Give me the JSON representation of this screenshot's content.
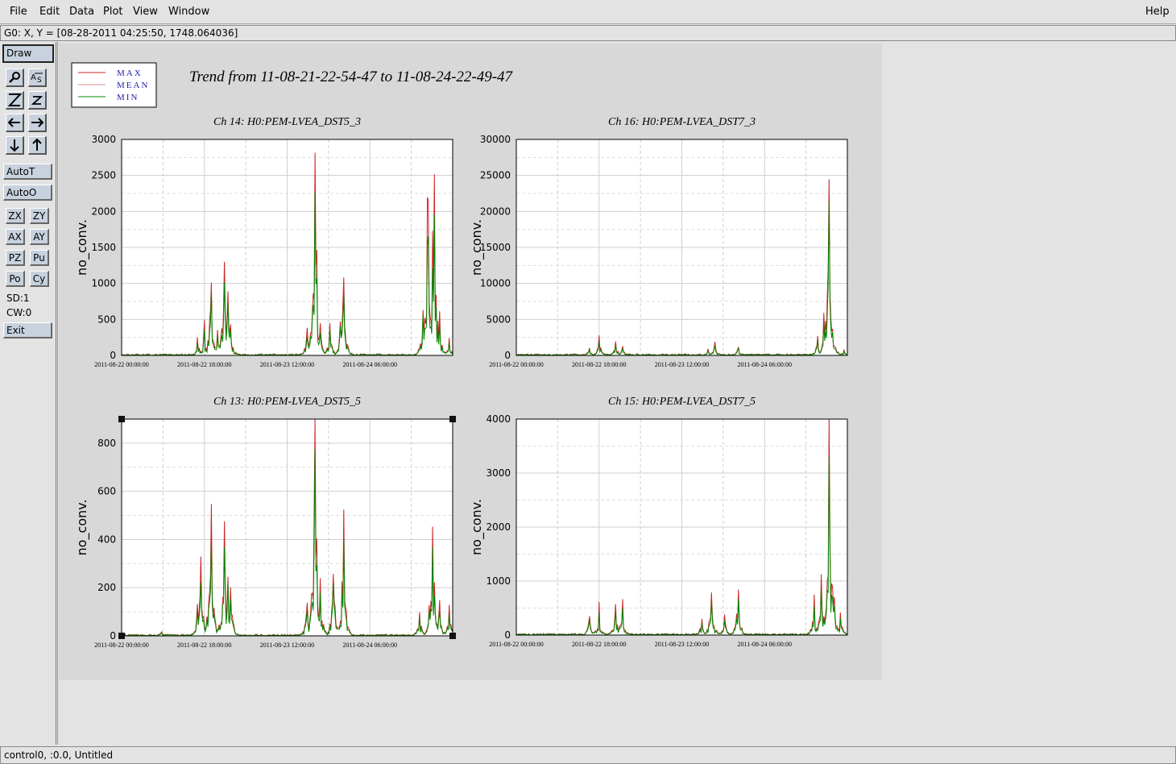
{
  "menubar": {
    "items": [
      "File",
      "Edit",
      "Data",
      "Plot",
      "View",
      "Window"
    ],
    "help": "Help"
  },
  "coord_readout": "G0: X, Y = [08-28-2011 04:25:50, 1748.064036]",
  "toolbar": {
    "draw": "Draw",
    "autot": "AutoT",
    "autoo": "AutoO",
    "small_buttons": [
      "ZX",
      "ZY",
      "AX",
      "AY",
      "PZ",
      "Pu",
      "Po",
      "Cy"
    ],
    "sd": "SD:1",
    "cw": "CW:0",
    "exit": "Exit",
    "icons": [
      "zoom-tool-icon",
      "axes-tool-icon",
      "zoom-in-icon",
      "zoom-out-icon",
      "pan-left-icon",
      "pan-right-icon",
      "pan-down-icon",
      "pan-up-icon"
    ]
  },
  "status": "control0, :0.0, Untitled",
  "plot": {
    "title": "Trend from 11-08-21-22-54-47 to 11-08-24-22-49-47",
    "legend": [
      {
        "label": "MAX",
        "color": "#cc2222"
      },
      {
        "label": "MEAN",
        "color": "#d89090"
      },
      {
        "label": "MIN",
        "color": "#008800"
      }
    ],
    "label_color": "#2222aa"
  },
  "chart_data": [
    {
      "type": "line",
      "title": "Ch 14: H0:PEM-LVEA_DST5_3",
      "ylabel": "no_conv.",
      "xlabel": "",
      "x_ticks": [
        "2011-08-22 00:00:00",
        "2011-08-22 18:00:00",
        "2011-08-23 12:00:00",
        "2011-08-24 06:00:00"
      ],
      "ylim": [
        0,
        3000
      ],
      "y_ticks": [
        0,
        500,
        1000,
        1500,
        2000,
        2500,
        3000
      ],
      "grid": true,
      "series_names": [
        "MAX",
        "MEAN",
        "MIN"
      ],
      "peaks": [
        {
          "t": 0.23,
          "v": 200
        },
        {
          "t": 0.25,
          "v": 380
        },
        {
          "t": 0.27,
          "v": 950
        },
        {
          "t": 0.29,
          "v": 300
        },
        {
          "t": 0.31,
          "v": 1100
        },
        {
          "t": 0.32,
          "v": 800
        },
        {
          "t": 0.33,
          "v": 400
        },
        {
          "t": 0.56,
          "v": 300
        },
        {
          "t": 0.585,
          "v": 2620
        },
        {
          "t": 0.6,
          "v": 350
        },
        {
          "t": 0.63,
          "v": 420
        },
        {
          "t": 0.66,
          "v": 430
        },
        {
          "t": 0.67,
          "v": 980
        },
        {
          "t": 0.91,
          "v": 600
        },
        {
          "t": 0.925,
          "v": 1800
        },
        {
          "t": 0.94,
          "v": 1400
        },
        {
          "t": 0.945,
          "v": 2110
        },
        {
          "t": 0.96,
          "v": 500
        },
        {
          "t": 0.99,
          "v": 200
        }
      ]
    },
    {
      "type": "line",
      "title": "Ch 16: H0:PEM-LVEA_DST7_3",
      "ylabel": "no_conv.",
      "xlabel": "",
      "x_ticks": [
        "2011-08-22 00:00:00",
        "2011-08-22 18:00:00",
        "2011-08-23 12:00:00",
        "2011-08-24 06:00:00"
      ],
      "ylim": [
        0,
        30000
      ],
      "y_ticks": [
        0,
        5000,
        10000,
        15000,
        20000,
        25000,
        30000
      ],
      "grid": true,
      "series_names": [
        "MAX",
        "MEAN",
        "MIN"
      ],
      "peaks": [
        {
          "t": 0.22,
          "v": 900
        },
        {
          "t": 0.25,
          "v": 2200
        },
        {
          "t": 0.3,
          "v": 1600
        },
        {
          "t": 0.32,
          "v": 1000
        },
        {
          "t": 0.58,
          "v": 700
        },
        {
          "t": 0.6,
          "v": 1500
        },
        {
          "t": 0.67,
          "v": 1100
        },
        {
          "t": 0.91,
          "v": 2500
        },
        {
          "t": 0.93,
          "v": 4800
        },
        {
          "t": 0.94,
          "v": 2700
        },
        {
          "t": 0.945,
          "v": 22800
        },
        {
          "t": 0.96,
          "v": 1000
        },
        {
          "t": 0.99,
          "v": 700
        }
      ]
    },
    {
      "type": "line",
      "title": "Ch 13: H0:PEM-LVEA_DST5_5",
      "ylabel": "no_conv.",
      "xlabel": "",
      "x_ticks": [
        "2011-08-22 00:00:00",
        "2011-08-22 18:00:00",
        "2011-08-23 12:00:00",
        "2011-08-24 06:00:00"
      ],
      "ylim": [
        0,
        900
      ],
      "y_ticks": [
        0,
        200,
        400,
        600,
        800
      ],
      "grid": true,
      "series_names": [
        "MAX",
        "MEAN",
        "MIN"
      ],
      "peaks": [
        {
          "t": 0.12,
          "v": 15
        },
        {
          "t": 0.23,
          "v": 110
        },
        {
          "t": 0.24,
          "v": 260
        },
        {
          "t": 0.27,
          "v": 440
        },
        {
          "t": 0.31,
          "v": 430
        },
        {
          "t": 0.32,
          "v": 230
        },
        {
          "t": 0.33,
          "v": 160
        },
        {
          "t": 0.56,
          "v": 120
        },
        {
          "t": 0.585,
          "v": 840
        },
        {
          "t": 0.6,
          "v": 200
        },
        {
          "t": 0.64,
          "v": 240
        },
        {
          "t": 0.67,
          "v": 430
        },
        {
          "t": 0.9,
          "v": 90
        },
        {
          "t": 0.93,
          "v": 110
        },
        {
          "t": 0.94,
          "v": 420
        },
        {
          "t": 0.96,
          "v": 120
        },
        {
          "t": 0.99,
          "v": 100
        }
      ]
    },
    {
      "type": "line",
      "title": "Ch 15: H0:PEM-LVEA_DST7_5",
      "ylabel": "no_conv.",
      "xlabel": "",
      "x_ticks": [
        "2011-08-22 00:00:00",
        "2011-08-22 18:00:00",
        "2011-08-23 12:00:00",
        "2011-08-24 06:00:00"
      ],
      "ylim": [
        0,
        4000
      ],
      "y_ticks": [
        0,
        1000,
        2000,
        3000,
        4000
      ],
      "grid": true,
      "series_names": [
        "MAX",
        "MEAN",
        "MIN"
      ],
      "peaks": [
        {
          "t": 0.22,
          "v": 300
        },
        {
          "t": 0.25,
          "v": 480
        },
        {
          "t": 0.3,
          "v": 470
        },
        {
          "t": 0.32,
          "v": 520
        },
        {
          "t": 0.56,
          "v": 250
        },
        {
          "t": 0.59,
          "v": 720
        },
        {
          "t": 0.63,
          "v": 300
        },
        {
          "t": 0.67,
          "v": 740
        },
        {
          "t": 0.9,
          "v": 600
        },
        {
          "t": 0.92,
          "v": 900
        },
        {
          "t": 0.945,
          "v": 3700
        },
        {
          "t": 0.96,
          "v": 620
        },
        {
          "t": 0.98,
          "v": 350
        }
      ]
    }
  ]
}
